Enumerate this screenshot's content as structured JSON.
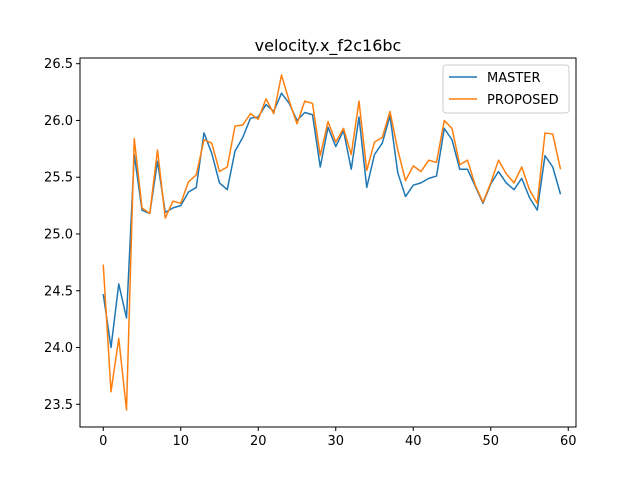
{
  "chart_data": {
    "type": "line",
    "title": "velocity.x_f2c16bc",
    "xlabel": "",
    "ylabel": "",
    "xlim": [
      -3,
      61
    ],
    "ylim": [
      23.3,
      26.55
    ],
    "xticks": [
      0,
      10,
      20,
      30,
      40,
      50,
      60
    ],
    "yticks": [
      23.5,
      24.0,
      24.5,
      25.0,
      25.5,
      26.0,
      26.5
    ],
    "ytick_labels": [
      "23.5",
      "24.0",
      "24.5",
      "25.0",
      "25.5",
      "26.0",
      "26.5"
    ],
    "legend_position": "top-right",
    "grid": false,
    "series": [
      {
        "name": "MASTER",
        "color": "#1f77b4",
        "values": [
          24.47,
          24.0,
          24.56,
          24.26,
          25.7,
          25.21,
          25.18,
          25.64,
          25.19,
          25.23,
          25.25,
          25.37,
          25.41,
          25.89,
          25.71,
          25.45,
          25.39,
          25.73,
          25.85,
          26.02,
          26.03,
          26.14,
          26.08,
          26.24,
          26.15,
          26.0,
          26.07,
          26.05,
          25.59,
          25.94,
          25.77,
          25.91,
          25.57,
          26.03,
          25.41,
          25.7,
          25.8,
          26.04,
          25.54,
          25.33,
          25.43,
          25.45,
          25.49,
          25.51,
          25.93,
          25.83,
          25.57,
          25.57,
          25.42,
          25.27,
          25.44,
          25.55,
          25.45,
          25.39,
          25.49,
          25.32,
          25.21,
          25.69,
          25.59,
          25.35
        ]
      },
      {
        "name": "PROPOSED",
        "color": "#ff7f0e",
        "values": [
          24.73,
          23.61,
          24.08,
          23.45,
          25.84,
          25.23,
          25.18,
          25.74,
          25.14,
          25.29,
          25.27,
          25.46,
          25.52,
          25.83,
          25.8,
          25.55,
          25.59,
          25.95,
          25.96,
          26.06,
          26.01,
          26.19,
          26.06,
          26.4,
          26.17,
          25.97,
          26.17,
          26.15,
          25.69,
          25.99,
          25.81,
          25.93,
          25.7,
          26.17,
          25.56,
          25.81,
          25.85,
          26.08,
          25.74,
          25.47,
          25.6,
          25.55,
          25.65,
          25.63,
          26.0,
          25.93,
          25.61,
          25.65,
          25.43,
          25.28,
          25.45,
          25.65,
          25.53,
          25.45,
          25.59,
          25.39,
          25.27,
          25.89,
          25.88,
          25.57
        ]
      }
    ]
  }
}
